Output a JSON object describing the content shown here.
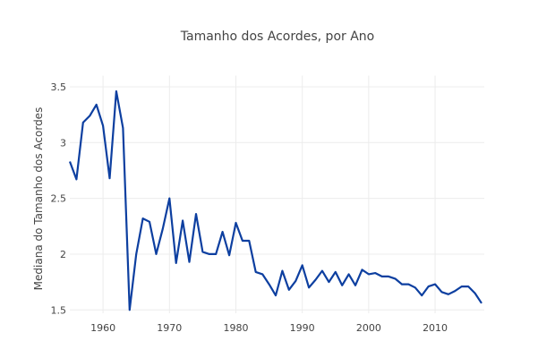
{
  "chart_data": {
    "type": "line",
    "title": "Tamanho dos Acordes, por Ano",
    "xlabel": "",
    "ylabel": "Mediana do Tamanho dos Acordes",
    "xlim": [
      1955,
      2017
    ],
    "ylim": [
      1.47,
      3.56
    ],
    "xticks": [
      1960,
      1970,
      1980,
      1990,
      2000,
      2010
    ],
    "yticks": [
      1.5,
      2,
      2.5,
      3,
      3.5
    ],
    "ytick_labels": [
      "1.5",
      "2",
      "2.5",
      "3",
      "3.5"
    ],
    "grid": true,
    "color": "#0d3fa0",
    "series": [
      {
        "name": "Mediana",
        "x": [
          1955,
          1956,
          1957,
          1958,
          1959,
          1960,
          1961,
          1962,
          1963,
          1964,
          1965,
          1966,
          1967,
          1968,
          1969,
          1970,
          1971,
          1972,
          1973,
          1974,
          1975,
          1976,
          1977,
          1978,
          1979,
          1980,
          1981,
          1982,
          1983,
          1984,
          1985,
          1986,
          1987,
          1988,
          1989,
          1990,
          1991,
          1992,
          1993,
          1994,
          1995,
          1996,
          1997,
          1998,
          1999,
          2000,
          2001,
          2002,
          2003,
          2004,
          2005,
          2006,
          2007,
          2008,
          2009,
          2010,
          2011,
          2012,
          2013,
          2014,
          2015,
          2016,
          2017
        ],
        "values": [
          2.83,
          2.67,
          3.18,
          3.24,
          3.34,
          3.15,
          2.68,
          3.46,
          3.13,
          1.5,
          2.0,
          2.32,
          2.29,
          2.0,
          2.23,
          2.5,
          1.92,
          2.3,
          1.93,
          2.36,
          2.02,
          2.0,
          2.0,
          2.2,
          1.99,
          2.28,
          2.12,
          2.12,
          1.84,
          1.82,
          1.73,
          1.63,
          1.85,
          1.68,
          1.76,
          1.9,
          1.7,
          1.77,
          1.85,
          1.75,
          1.84,
          1.72,
          1.82,
          1.72,
          1.86,
          1.82,
          1.83,
          1.8,
          1.8,
          1.78,
          1.73,
          1.73,
          1.7,
          1.63,
          1.71,
          1.73,
          1.66,
          1.64,
          1.67,
          1.71,
          1.71,
          1.65,
          1.56
        ]
      }
    ]
  }
}
